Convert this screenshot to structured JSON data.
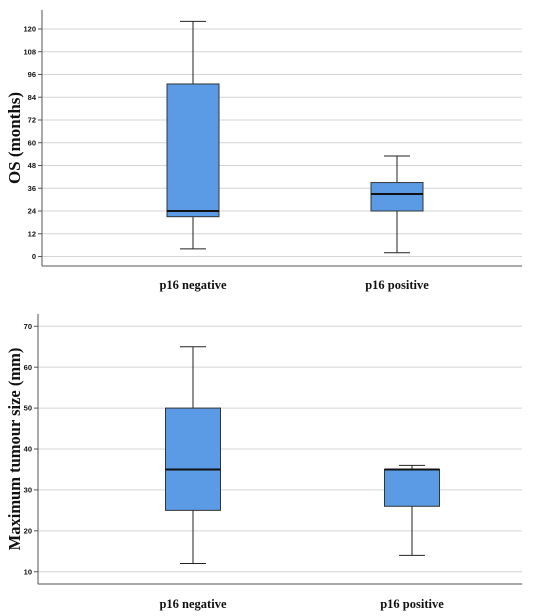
{
  "chart_data": [
    {
      "type": "boxplot",
      "ylabel": "OS (months)",
      "categories": [
        "p16 negative",
        "p16 positive"
      ],
      "ylim": [
        -5,
        130
      ],
      "yticks": [
        0,
        12,
        24,
        36,
        48,
        60,
        72,
        84,
        96,
        108,
        120
      ],
      "grid": true,
      "box_color": "#5b9be6",
      "boxes": [
        {
          "category": "p16 negative",
          "min": 4,
          "q1": 21,
          "median": 24,
          "q3": 91,
          "max": 124
        },
        {
          "category": "p16 positive",
          "min": 2,
          "q1": 24,
          "median": 33,
          "q3": 39,
          "max": 53
        }
      ]
    },
    {
      "type": "boxplot",
      "ylabel": "Maximum tumour size (mm)",
      "categories": [
        "p16 negative",
        "p16 positive"
      ],
      "ylim": [
        7,
        73
      ],
      "yticks": [
        10,
        20,
        30,
        40,
        50,
        60,
        70
      ],
      "grid": true,
      "box_color": "#5b9be6",
      "boxes": [
        {
          "category": "p16 negative",
          "min": 12,
          "q1": 25,
          "median": 35,
          "q3": 50,
          "max": 65
        },
        {
          "category": "p16 positive",
          "min": 14,
          "q1": 26,
          "median": 35,
          "q3": 35,
          "max": 36
        }
      ]
    }
  ]
}
